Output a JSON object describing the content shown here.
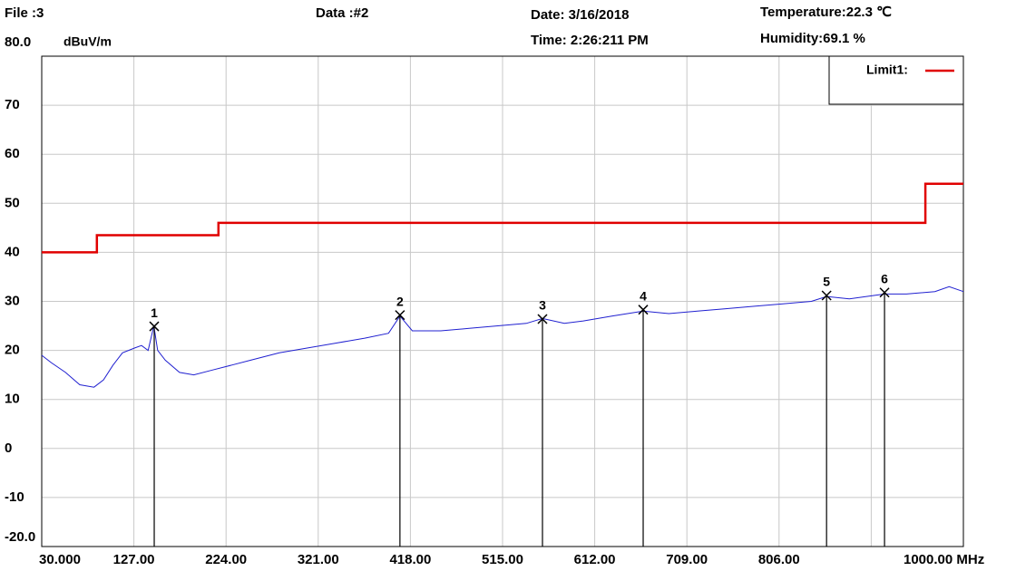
{
  "header": {
    "file": "File :3",
    "data": "Data :#2",
    "date": "Date: 3/16/2018",
    "time": "Time: 2:26:211 PM",
    "temperature": "Temperature:22.3 ℃",
    "humidity": "Humidity:69.1 %"
  },
  "chart_data": {
    "type": "line",
    "y_label": "dBuV/m",
    "xlim": [
      30,
      1000
    ],
    "ylim": [
      -20,
      80
    ],
    "xticks": [
      {
        "value": 30,
        "label": "30.000"
      },
      {
        "value": 127,
        "label": "127.00"
      },
      {
        "value": 224,
        "label": "224.00"
      },
      {
        "value": 321,
        "label": "321.00"
      },
      {
        "value": 418,
        "label": "418.00"
      },
      {
        "value": 515,
        "label": "515.00"
      },
      {
        "value": 612,
        "label": "612.00"
      },
      {
        "value": 709,
        "label": "709.00"
      },
      {
        "value": 806,
        "label": "806.00"
      },
      {
        "value": 903,
        "label": null
      },
      {
        "value": 1000,
        "label": "1000.00 MHz"
      }
    ],
    "yticks": [
      {
        "value": -20,
        "label": "-20.0"
      },
      -10,
      0,
      10,
      20,
      30,
      40,
      50,
      60,
      70,
      {
        "value": 80,
        "label": "80.0"
      }
    ],
    "grid": true,
    "legend": "top-right",
    "series": [
      {
        "name": "Limit1:",
        "color": "#e00000",
        "x": [
          30,
          88,
          88,
          216,
          216,
          960,
          960,
          1000
        ],
        "values": [
          40,
          40,
          43.5,
          43.5,
          46,
          46,
          54,
          54
        ]
      },
      {
        "name": null,
        "color": "#2020d0",
        "x": [
          30,
          40,
          55,
          70,
          85,
          95,
          105,
          115,
          128,
          135,
          142,
          148,
          152,
          160,
          175,
          190,
          210,
          230,
          250,
          280,
          310,
          340,
          370,
          395,
          407,
          420,
          450,
          480,
          510,
          540,
          557,
          580,
          600,
          630,
          663,
          690,
          720,
          750,
          780,
          810,
          840,
          856,
          880,
          917,
          940,
          970,
          985,
          1000
        ],
        "values": [
          19,
          17.5,
          15.5,
          13,
          12.5,
          14,
          17,
          19.5,
          20.5,
          21,
          20,
          25,
          20,
          18,
          15.5,
          15,
          16,
          17,
          18,
          19.5,
          20.5,
          21.5,
          22.5,
          23.5,
          27,
          24,
          24,
          24.5,
          25,
          25.5,
          26.5,
          25.5,
          26,
          27,
          28,
          27.5,
          28,
          28.5,
          29,
          29.5,
          30,
          31,
          30.5,
          31.5,
          31.5,
          32,
          33,
          32
        ]
      }
    ],
    "markers": [
      {
        "label": "1",
        "x": 148.4,
        "value": 24.9
      },
      {
        "label": "2",
        "x": 407,
        "value": 27.2
      },
      {
        "label": "3",
        "x": 557,
        "value": 26.4
      },
      {
        "label": "4",
        "x": 663,
        "value": 28.3
      },
      {
        "label": "5",
        "x": 856,
        "value": 31.2
      },
      {
        "label": "6",
        "x": 917,
        "value": 31.8
      }
    ]
  }
}
